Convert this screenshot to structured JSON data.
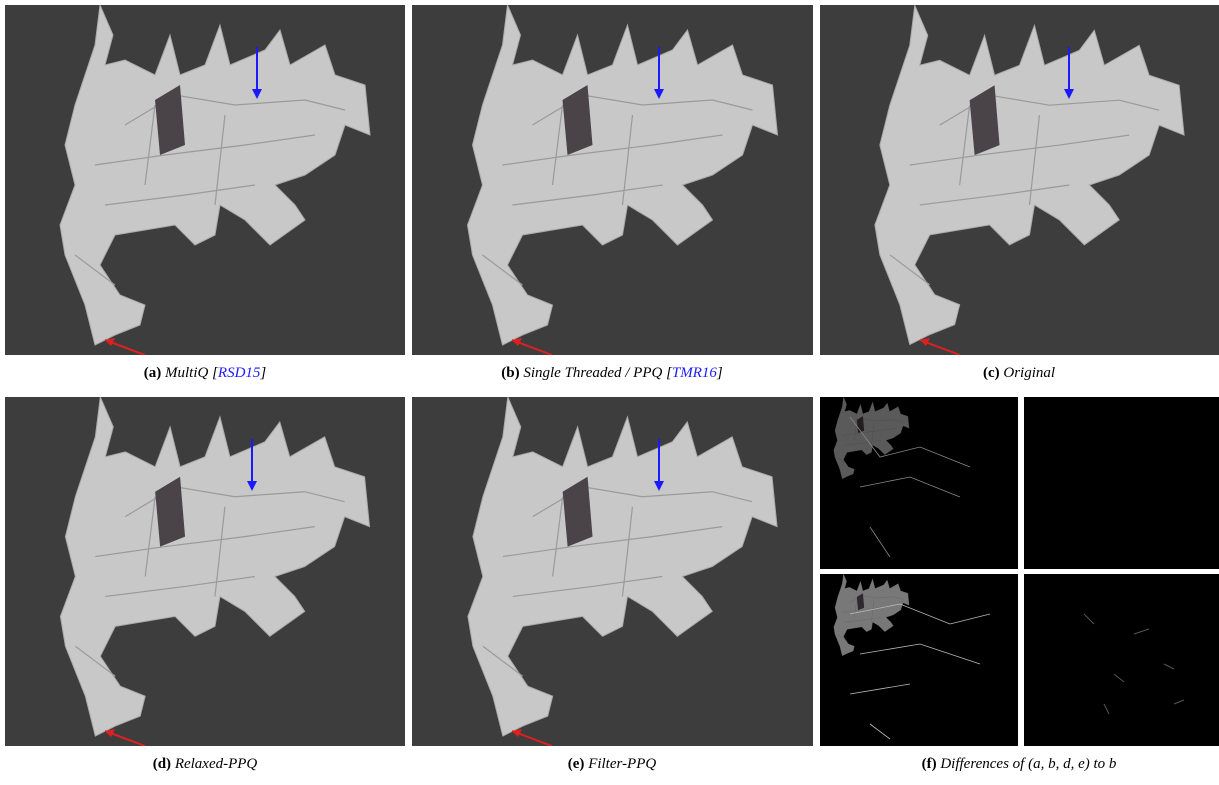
{
  "panels": [
    {
      "label": "(a)",
      "text": "MultiQ [",
      "cite": "RSD15",
      "after": "]"
    },
    {
      "label": "(b)",
      "text": "Single Threaded / PPQ [",
      "cite": "TMR16",
      "after": "]"
    },
    {
      "label": "(c)",
      "text": "Original"
    },
    {
      "label": "(d)",
      "text": "Relaxed-PPQ"
    },
    {
      "label": "(e)",
      "text": "Filter-PPQ"
    },
    {
      "label": "(f)",
      "text": "Differences of (a, b, d, e) to b"
    }
  ]
}
